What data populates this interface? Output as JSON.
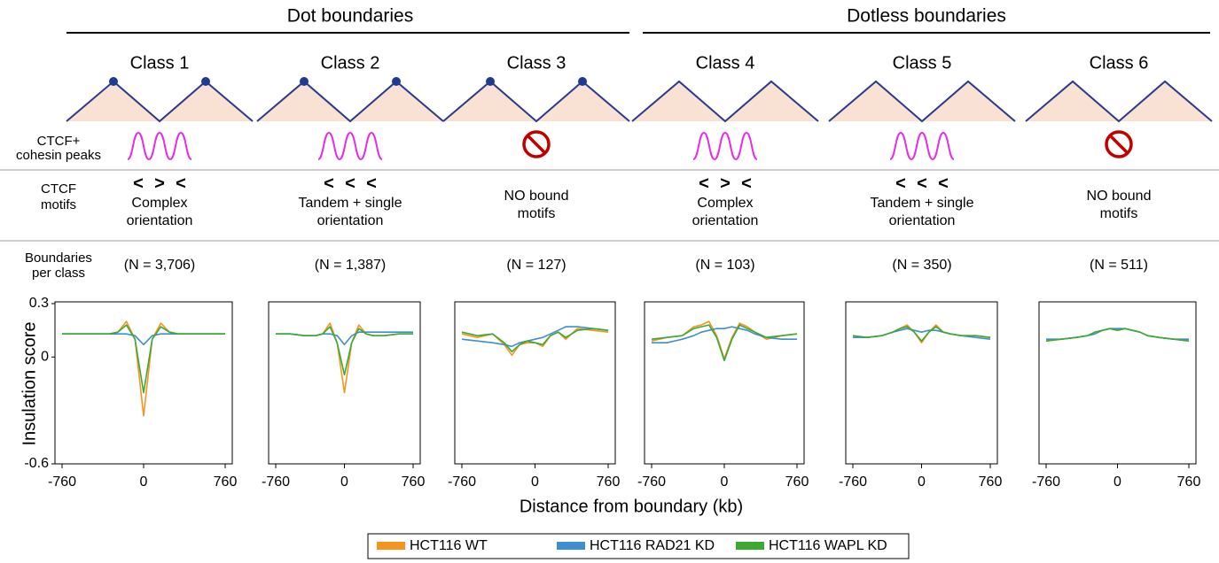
{
  "groups": [
    {
      "label": "Dot boundaries"
    },
    {
      "label": "Dotless boundaries"
    }
  ],
  "row_labels": {
    "peaks": [
      "CTCF+",
      "cohesin peaks"
    ],
    "motifs": [
      "CTCF",
      "motifs"
    ],
    "counts": [
      "Boundaries",
      "per class"
    ]
  },
  "classes": [
    {
      "name": "Class 1",
      "dots": true,
      "peaks": true,
      "motifs": [
        {
          "symbol": "<",
          "color": "#e8452c"
        },
        {
          "symbol": ">",
          "color": "#3aaa35"
        },
        {
          "symbol": "<",
          "color": "#e8452c"
        }
      ],
      "motif_text": [
        "Complex",
        "orientation"
      ],
      "n": "(N = 3,706)"
    },
    {
      "name": "Class 2",
      "dots": true,
      "peaks": true,
      "motifs": [
        {
          "symbol": "<",
          "color": "#e8452c"
        },
        {
          "symbol": "<",
          "color": "#e8452c"
        },
        {
          "symbol": "<",
          "color": "#e8452c"
        }
      ],
      "motif_text": [
        "Tandem + single",
        "orientation"
      ],
      "n": "(N = 1,387)"
    },
    {
      "name": "Class 3",
      "dots": true,
      "peaks": false,
      "motifs": [],
      "motif_text": [
        "NO bound",
        "motifs"
      ],
      "n": "(N = 127)"
    },
    {
      "name": "Class 4",
      "dots": false,
      "peaks": true,
      "motifs": [
        {
          "symbol": "<",
          "color": "#e8452c"
        },
        {
          "symbol": ">",
          "color": "#3aaa35"
        },
        {
          "symbol": "<",
          "color": "#e8452c"
        }
      ],
      "motif_text": [
        "Complex",
        "orientation"
      ],
      "n": "(N = 103)"
    },
    {
      "name": "Class 5",
      "dots": false,
      "peaks": true,
      "motifs": [
        {
          "symbol": "<",
          "color": "#e8452c"
        },
        {
          "symbol": "<",
          "color": "#e8452c"
        },
        {
          "symbol": "<",
          "color": "#e8452c"
        }
      ],
      "motif_text": [
        "Tandem + single",
        "orientation"
      ],
      "n": "(N = 350)"
    },
    {
      "name": "Class 6",
      "dots": false,
      "peaks": false,
      "motifs": [],
      "motif_text": [
        "NO bound",
        "motifs"
      ],
      "n": "(N = 511)"
    }
  ],
  "xlabel": "Distance from boundary (kb)",
  "chart_data": [
    {
      "type": "line",
      "ylabel": "Insulation score",
      "x": [
        -760,
        -600,
        -440,
        -320,
        -240,
        -160,
        -80,
        0,
        80,
        160,
        240,
        320,
        440,
        600,
        760
      ],
      "xlim": [
        -760,
        760
      ],
      "xticks": [
        -760,
        0,
        760
      ],
      "ylim": [
        -0.6,
        0.3
      ],
      "yticks": [
        -0.6,
        0,
        0.3
      ],
      "series": [
        {
          "name": "HCT116 WT",
          "color": "#f7941d",
          "values": [
            0.13,
            0.13,
            0.13,
            0.13,
            0.14,
            0.2,
            0.1,
            -0.33,
            0.1,
            0.19,
            0.14,
            0.13,
            0.13,
            0.13,
            0.13
          ]
        },
        {
          "name": "HCT116 RAD21 KD",
          "color": "#3d8fd1",
          "values": [
            0.13,
            0.13,
            0.13,
            0.13,
            0.13,
            0.13,
            0.12,
            0.07,
            0.12,
            0.13,
            0.13,
            0.13,
            0.13,
            0.13,
            0.13
          ]
        },
        {
          "name": "HCT116 WAPL KD",
          "color": "#3aaa35",
          "values": [
            0.13,
            0.13,
            0.13,
            0.13,
            0.14,
            0.18,
            0.1,
            -0.2,
            0.1,
            0.17,
            0.14,
            0.13,
            0.13,
            0.13,
            0.13
          ]
        }
      ]
    },
    {
      "type": "line",
      "x": [
        -760,
        -600,
        -440,
        -320,
        -240,
        -160,
        -80,
        0,
        80,
        160,
        240,
        320,
        440,
        600,
        760
      ],
      "xlim": [
        -760,
        760
      ],
      "xticks": [
        -760,
        0,
        760
      ],
      "ylim": [
        -0.6,
        0.3
      ],
      "series": [
        {
          "name": "HCT116 WT",
          "color": "#f7941d",
          "values": [
            0.13,
            0.13,
            0.12,
            0.12,
            0.13,
            0.19,
            0.08,
            -0.2,
            0.08,
            0.18,
            0.13,
            0.12,
            0.12,
            0.13,
            0.13
          ]
        },
        {
          "name": "HCT116 RAD21 KD",
          "color": "#3d8fd1",
          "values": [
            0.13,
            0.13,
            0.12,
            0.12,
            0.13,
            0.13,
            0.12,
            0.07,
            0.12,
            0.14,
            0.14,
            0.14,
            0.14,
            0.14,
            0.14
          ]
        },
        {
          "name": "HCT116 WAPL KD",
          "color": "#3aaa35",
          "values": [
            0.13,
            0.13,
            0.12,
            0.12,
            0.13,
            0.17,
            0.08,
            -0.1,
            0.08,
            0.16,
            0.13,
            0.12,
            0.12,
            0.13,
            0.13
          ]
        }
      ]
    },
    {
      "type": "line",
      "x": [
        -760,
        -600,
        -440,
        -320,
        -240,
        -160,
        -80,
        0,
        80,
        160,
        240,
        320,
        440,
        600,
        760
      ],
      "xlim": [
        -760,
        760
      ],
      "xticks": [
        -760,
        0,
        760
      ],
      "ylim": [
        -0.6,
        0.3
      ],
      "series": [
        {
          "name": "HCT116 WT",
          "color": "#f7941d",
          "values": [
            0.13,
            0.11,
            0.13,
            0.07,
            0.01,
            0.07,
            0.08,
            0.08,
            0.06,
            0.12,
            0.14,
            0.1,
            0.16,
            0.15,
            0.14
          ]
        },
        {
          "name": "HCT116 RAD21 KD",
          "color": "#3d8fd1",
          "values": [
            0.1,
            0.09,
            0.08,
            0.07,
            0.06,
            0.08,
            0.09,
            0.1,
            0.11,
            0.13,
            0.15,
            0.17,
            0.17,
            0.16,
            0.15
          ]
        },
        {
          "name": "HCT116 WAPL KD",
          "color": "#3aaa35",
          "values": [
            0.14,
            0.12,
            0.13,
            0.08,
            0.03,
            0.07,
            0.09,
            0.08,
            0.07,
            0.12,
            0.14,
            0.11,
            0.15,
            0.16,
            0.15
          ]
        }
      ]
    },
    {
      "type": "line",
      "x": [
        -760,
        -600,
        -440,
        -320,
        -240,
        -160,
        -80,
        0,
        80,
        160,
        240,
        320,
        440,
        600,
        760
      ],
      "xlim": [
        -760,
        760
      ],
      "xticks": [
        -760,
        0,
        760
      ],
      "ylim": [
        -0.6,
        0.3
      ],
      "series": [
        {
          "name": "HCT116 WT",
          "color": "#f7941d",
          "values": [
            0.09,
            0.11,
            0.12,
            0.17,
            0.18,
            0.2,
            0.12,
            -0.01,
            0.11,
            0.19,
            0.17,
            0.14,
            0.1,
            0.12,
            0.13
          ]
        },
        {
          "name": "HCT116 RAD21 KD",
          "color": "#3d8fd1",
          "values": [
            0.08,
            0.08,
            0.1,
            0.12,
            0.14,
            0.15,
            0.16,
            0.16,
            0.17,
            0.16,
            0.15,
            0.13,
            0.11,
            0.1,
            0.1
          ]
        },
        {
          "name": "HCT116 WAPL KD",
          "color": "#3aaa35",
          "values": [
            0.1,
            0.11,
            0.12,
            0.16,
            0.17,
            0.18,
            0.11,
            -0.02,
            0.1,
            0.18,
            0.16,
            0.14,
            0.11,
            0.12,
            0.13
          ]
        }
      ]
    },
    {
      "type": "line",
      "x": [
        -760,
        -600,
        -440,
        -320,
        -240,
        -160,
        -80,
        0,
        80,
        160,
        240,
        320,
        440,
        600,
        760
      ],
      "xlim": [
        -760,
        760
      ],
      "xticks": [
        -760,
        0,
        760
      ],
      "ylim": [
        -0.6,
        0.3
      ],
      "series": [
        {
          "name": "HCT116 WT",
          "color": "#f7941d",
          "values": [
            0.11,
            0.11,
            0.12,
            0.14,
            0.16,
            0.18,
            0.14,
            0.08,
            0.14,
            0.18,
            0.14,
            0.13,
            0.12,
            0.12,
            0.11
          ]
        },
        {
          "name": "HCT116 RAD21 KD",
          "color": "#3d8fd1",
          "values": [
            0.11,
            0.11,
            0.12,
            0.14,
            0.15,
            0.16,
            0.15,
            0.14,
            0.15,
            0.15,
            0.14,
            0.13,
            0.12,
            0.11,
            0.1
          ]
        },
        {
          "name": "HCT116 WAPL KD",
          "color": "#3aaa35",
          "values": [
            0.12,
            0.11,
            0.12,
            0.14,
            0.16,
            0.17,
            0.14,
            0.09,
            0.14,
            0.17,
            0.14,
            0.13,
            0.12,
            0.12,
            0.11
          ]
        }
      ]
    },
    {
      "type": "line",
      "x": [
        -760,
        -600,
        -440,
        -320,
        -240,
        -160,
        -80,
        0,
        80,
        160,
        240,
        320,
        440,
        600,
        760
      ],
      "xlim": [
        -760,
        760
      ],
      "xticks": [
        -760,
        0,
        760
      ],
      "ylim": [
        -0.6,
        0.3
      ],
      "series": [
        {
          "name": "HCT116 WT",
          "color": "#f7941d",
          "values": [
            0.09,
            0.1,
            0.11,
            0.12,
            0.14,
            0.15,
            0.16,
            0.15,
            0.16,
            0.15,
            0.14,
            0.12,
            0.11,
            0.1,
            0.09
          ]
        },
        {
          "name": "HCT116 RAD21 KD",
          "color": "#3d8fd1",
          "values": [
            0.1,
            0.1,
            0.11,
            0.12,
            0.13,
            0.15,
            0.16,
            0.16,
            0.16,
            0.15,
            0.14,
            0.12,
            0.11,
            0.1,
            0.1
          ]
        },
        {
          "name": "HCT116 WAPL KD",
          "color": "#3aaa35",
          "values": [
            0.09,
            0.1,
            0.11,
            0.12,
            0.14,
            0.15,
            0.16,
            0.15,
            0.16,
            0.15,
            0.14,
            0.12,
            0.11,
            0.1,
            0.09
          ]
        }
      ]
    }
  ]
}
